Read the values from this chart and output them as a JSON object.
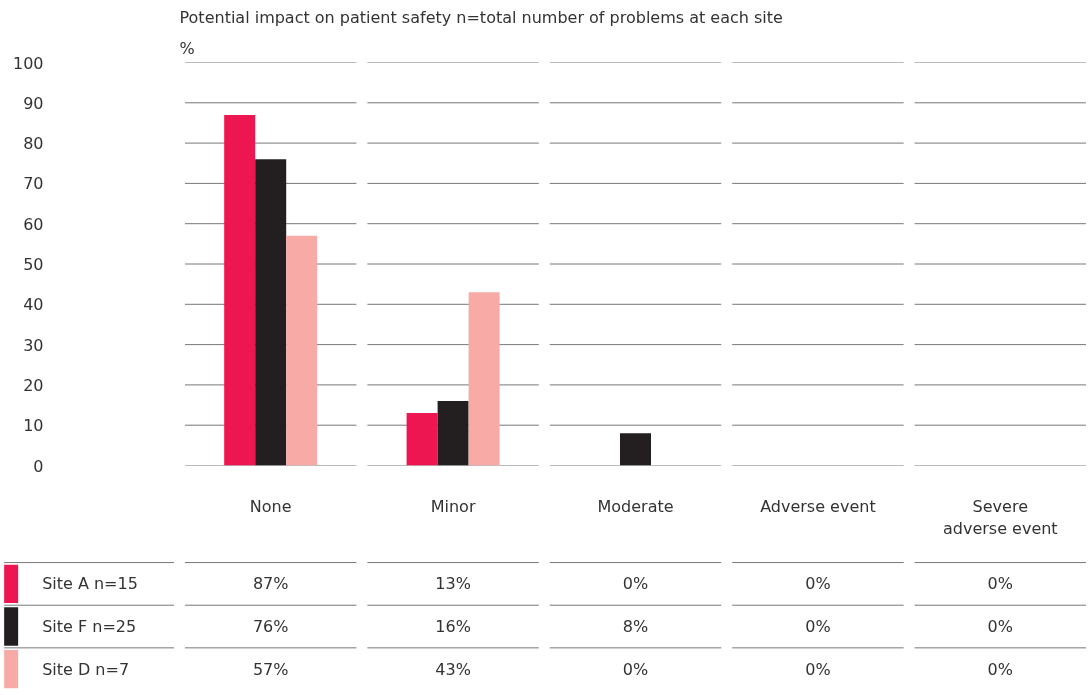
{
  "chart_data": {
    "type": "bar",
    "title": "Potential impact on patient safety n=total number of problems at each site",
    "ylabel": "%",
    "categories": [
      "None",
      "Minor",
      "Moderate",
      "Adverse event",
      "Severe adverse event"
    ],
    "series": [
      {
        "name": "Site A n=15",
        "color": "#ed1651",
        "values": [
          87,
          13,
          0,
          0,
          0
        ],
        "value_labels": [
          "87%",
          "13%",
          "0%",
          "0%",
          "0%"
        ]
      },
      {
        "name": "Site F n=25",
        "color": "#231f20",
        "values": [
          76,
          16,
          8,
          0,
          0
        ],
        "value_labels": [
          "76%",
          "16%",
          "8%",
          "0%",
          "0%"
        ]
      },
      {
        "name": "Site D n=7",
        "color": "#f7aaa6",
        "values": [
          57,
          43,
          0,
          0,
          0
        ],
        "value_labels": [
          "57%",
          "43%",
          "0%",
          "0%",
          "0%"
        ]
      }
    ],
    "ylim": [
      0,
      100
    ],
    "yticks": [
      0,
      10,
      20,
      30,
      40,
      50,
      60,
      70,
      80,
      90,
      100
    ],
    "grid": "y",
    "legend": "bottom"
  }
}
